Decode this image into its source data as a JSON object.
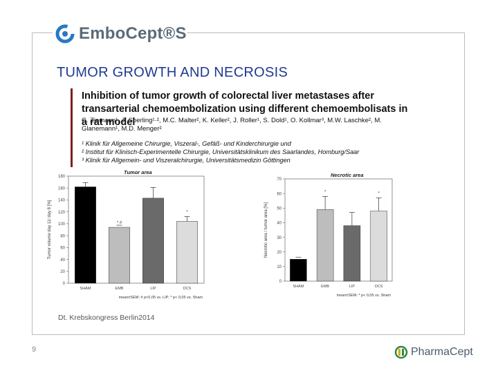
{
  "header": {
    "brand": "EmboCept®S",
    "title": "TUMOR GROWTH AND NECROSIS"
  },
  "abstract": {
    "title": "Inhibition of tumor growth of colorectal liver metastases after transarterial chemoembolization using different chemoembolisats in a rat model",
    "authors": "C. Ziemann¹, J. Sperling¹·², M.C. Malter², K. Keller², J. Roller¹, S. Dold¹, O. Kollmar³, M.W. Laschke², M. Glanemann¹, M.D. Menger²",
    "affiliations": [
      "¹ Klinik für Allgemeine Chirurgie, Viszeral-, Gefäß- und Kinderchirurgie und",
      "² Institut für Klinisch-Experimentelle Chirurgie, Universitätsklinikum des Saarlandes, Homburg/Saar",
      "³ Klinik für Allgemein- und Viszeralchirurgie, Universitätsmedizin Göttingen"
    ]
  },
  "footer": {
    "source": "Dt. Krebskongress Berlin2014",
    "page_number": "9",
    "company": "PharmaCept"
  },
  "colors": {
    "title_blue": "#1f3a93",
    "brand_gray": "#5a6b7a",
    "bar_sham": "#000000",
    "bar_emb": "#bdbdbd",
    "bar_lip": "#6a6a6a",
    "bar_dcs": "#dcdcdc"
  },
  "chart_data": [
    {
      "type": "bar",
      "title": "Tumor area",
      "ylabel": "Tumor volume day 11/ day 8 [%]",
      "categories": [
        "SHAM",
        "EMB",
        "LIP",
        "DCS"
      ],
      "values": [
        162,
        94,
        143,
        104
      ],
      "errors": [
        7,
        0,
        18,
        8
      ],
      "annotations": [
        "",
        "* #",
        "",
        "*"
      ],
      "ylim": [
        0,
        180
      ],
      "yticks": [
        "0",
        "20",
        "40",
        "60",
        "80",
        "100",
        "120",
        "140",
        "160",
        "180"
      ],
      "note": "mean±SEM: # p<0,05 vs. LIP; * p< 0,05 vs. Sham"
    },
    {
      "type": "bar",
      "title": "Necrotic area",
      "ylabel": "Necrotic area / tumor area [%]",
      "categories": [
        "SHAM",
        "EMB",
        "LIP",
        "DCS"
      ],
      "values": [
        15,
        49,
        38,
        48
      ],
      "errors": [
        0,
        9,
        9,
        9
      ],
      "annotations": [
        "",
        "*",
        "",
        "*"
      ],
      "ylim": [
        0,
        70
      ],
      "yticks": [
        "0",
        "10",
        "20",
        "30",
        "40",
        "50",
        "60",
        "70"
      ],
      "note": "mean±SEM: * p< 0,05 vs. Sham"
    }
  ]
}
